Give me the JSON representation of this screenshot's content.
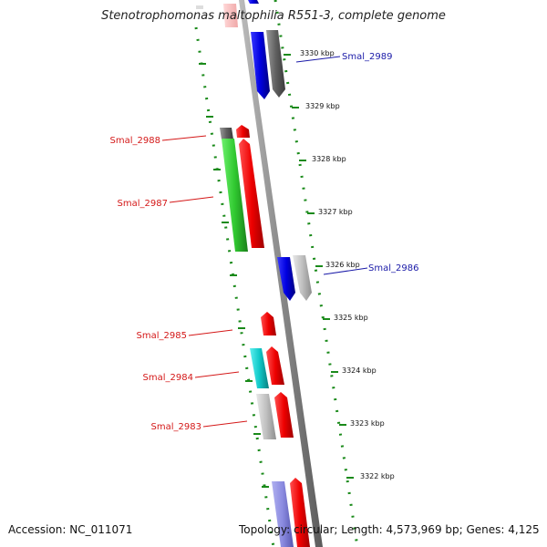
{
  "title": "Stenotrophomonas maltophilia R551-3, complete genome",
  "accession": "Accession: NC_011071",
  "summary": "Topology: circular; Length: 4,573,969 bp; Genes: 4,125",
  "colors": {
    "backbone": "#8a8a8a",
    "tick": "#1a8a1a",
    "forward_label": "#d41818",
    "reverse_label": "#1a1aa8"
  },
  "ticks": [
    {
      "label": "3330 kbp"
    },
    {
      "label": "3329 kbp"
    },
    {
      "label": "3328 kbp"
    },
    {
      "label": "3327 kbp"
    },
    {
      "label": "3326 kbp"
    },
    {
      "label": "3325 kbp"
    },
    {
      "label": "3324 kbp"
    },
    {
      "label": "3323 kbp"
    },
    {
      "label": "3322 kbp"
    }
  ],
  "gene_labels": [
    {
      "label": "Smal_2989",
      "strand": "reverse"
    },
    {
      "label": "Smal_2988",
      "strand": "forward"
    },
    {
      "label": "Smal_2987",
      "strand": "forward"
    },
    {
      "label": "Smal_2986",
      "strand": "reverse"
    },
    {
      "label": "Smal_2985",
      "strand": "forward"
    },
    {
      "label": "Smal_2984",
      "strand": "forward"
    },
    {
      "label": "Smal_2983",
      "strand": "forward"
    }
  ]
}
